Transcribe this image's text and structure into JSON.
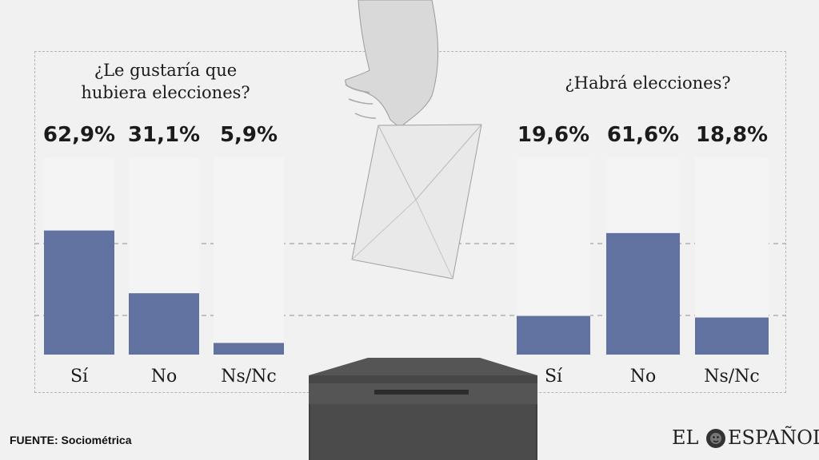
{
  "source": "FUENTE: Sociométrica",
  "logo": {
    "word1": "EL",
    "word2": "ESPAÑOL"
  },
  "colors": {
    "bar_fill": "#6272a0",
    "bar_track": "#f4f4f4",
    "text": "#1b1b1b"
  },
  "chart_data": [
    {
      "type": "bar",
      "title": "¿Le gustaría que hubiera elecciones?",
      "categories": [
        "Sí",
        "No",
        "Ns/Nc"
      ],
      "values": [
        62.9,
        31.1,
        5.9
      ],
      "value_labels": [
        "62,9%",
        "31,1%",
        "5,9%"
      ],
      "unit": "%",
      "ylim": [
        0,
        100
      ],
      "grid": true
    },
    {
      "type": "bar",
      "title": "¿Habrá elecciones?",
      "categories": [
        "Sí",
        "No",
        "Ns/Nc"
      ],
      "values": [
        19.6,
        61.6,
        18.8
      ],
      "value_labels": [
        "19,6%",
        "61,6%",
        "18,8%"
      ],
      "unit": "%",
      "ylim": [
        0,
        100
      ],
      "grid": true
    }
  ]
}
